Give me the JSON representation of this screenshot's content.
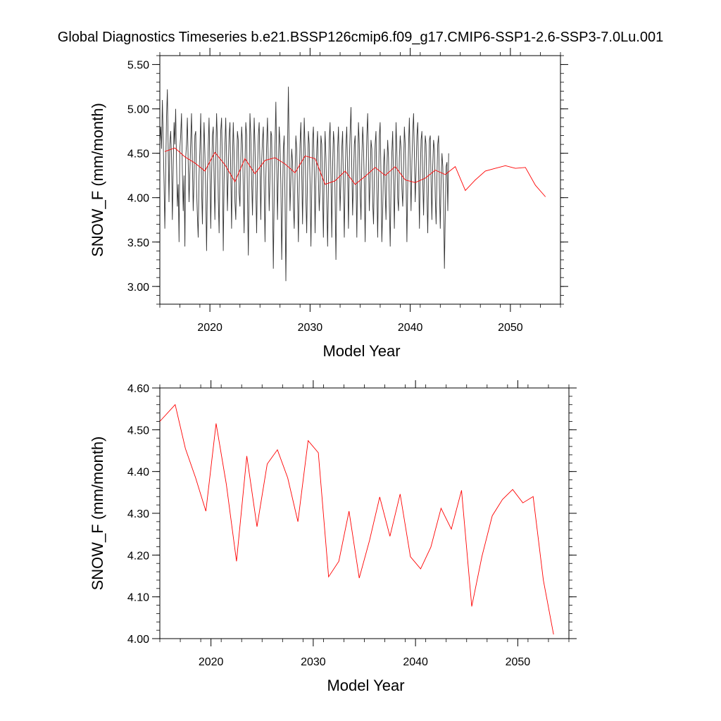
{
  "title": "Global Diagnostics Timeseries b.e21.BSSP126cmip6.f09_g17.CMIP6-SSP1-2.6-SSP3-7.0Lu.001",
  "colors": {
    "monthly_line": "#333333",
    "annual_line": "#ff0000",
    "axis": "#000000",
    "background": "#ffffff"
  },
  "chart_data": [
    {
      "type": "line",
      "xlabel": "Model Year",
      "ylabel": "SNOW_F (mm/month)",
      "xlim": [
        2015,
        2055
      ],
      "ylim": [
        2.8,
        5.6
      ],
      "xticks": [
        2020,
        2030,
        2040,
        2050
      ],
      "xtick_labels": [
        "2020",
        "2030",
        "2040",
        "2050"
      ],
      "yticks": [
        3.0,
        3.5,
        4.0,
        4.5,
        5.0,
        5.5
      ],
      "ytick_labels": [
        "3.00",
        "3.50",
        "4.00",
        "4.50",
        "5.00",
        "5.50"
      ],
      "grid": false,
      "series": [
        {
          "x_start": 2015.0,
          "x_step": 0.0833333,
          "values": [
            4.62,
            4.8,
            4.55,
            5.1,
            4.7,
            4.2,
            3.65,
            4.3,
            4.9,
            5.22,
            4.55,
            3.95,
            4.6,
            4.75,
            4.45,
            3.75,
            4.35,
            4.85,
            4.6,
            5.0,
            4.4,
            3.9,
            4.15,
            3.5,
            4.55,
            4.7,
            4.95,
            4.3,
            3.85,
            4.25,
            3.45,
            4.45,
            4.6,
            4.9,
            4.4,
            3.95,
            4.3,
            4.65,
            4.95,
            4.4,
            3.85,
            4.2,
            4.7,
            4.75,
            4.1,
            3.8,
            3.55,
            4.25,
            4.55,
            4.95,
            4.1,
            3.7,
            4.4,
            4.85,
            4.5,
            4.05,
            3.4,
            4.15,
            4.6,
            4.9,
            4.35,
            3.65,
            4.25,
            4.7,
            4.8,
            4.2,
            3.75,
            4.45,
            4.95,
            4.65,
            4.0,
            3.6,
            4.3,
            4.75,
            4.9,
            4.35,
            3.4,
            4.2,
            4.6,
            4.9,
            4.45,
            3.85,
            4.3,
            4.7,
            4.85,
            4.25,
            3.65,
            4.4,
            4.85,
            4.5,
            3.95,
            3.75,
            4.35,
            4.75,
            4.65,
            4.05,
            3.9,
            4.45,
            4.8,
            4.6,
            4.1,
            3.6,
            4.35,
            4.85,
            4.7,
            4.0,
            3.35,
            4.15,
            4.95,
            4.7,
            4.2,
            3.8,
            4.4,
            4.9,
            4.6,
            4.1,
            3.6,
            4.3,
            4.7,
            4.85,
            4.35,
            3.75,
            4.4,
            4.65,
            4.8,
            4.1,
            3.5,
            4.2,
            4.6,
            4.9,
            4.4,
            3.85,
            4.25,
            4.75,
            4.7,
            4.05,
            3.2,
            4.0,
            4.6,
            5.08,
            4.4,
            3.75,
            4.3,
            4.8,
            4.6,
            4.15,
            3.3,
            3.95,
            4.55,
            4.7,
            4.0,
            3.06,
            3.95,
            4.6,
            5.25,
            4.5,
            3.85,
            4.2,
            4.55,
            4.4,
            3.9,
            3.65,
            4.25,
            4.7,
            4.55,
            4.05,
            3.5,
            4.15,
            4.6,
            4.85,
            4.3,
            3.7,
            4.35,
            4.9,
            4.55,
            4.0,
            3.6,
            4.25,
            4.75,
            4.6,
            4.15,
            3.45,
            4.05,
            4.65,
            4.8,
            4.3,
            3.6,
            4.2,
            4.55,
            4.75,
            4.2,
            3.85,
            4.1,
            4.7,
            4.6,
            4.05,
            3.55,
            4.3,
            4.75,
            4.45,
            3.95,
            3.45,
            4.15,
            4.65,
            4.85,
            4.25,
            3.55,
            4.35,
            4.75,
            4.6,
            4.0,
            3.3,
            4.1,
            4.55,
            4.8,
            4.3,
            3.85,
            4.2,
            4.55,
            4.75,
            4.1,
            3.55,
            4.25,
            4.6,
            4.8,
            4.3,
            3.65,
            4.4,
            4.75,
            5.02,
            4.35,
            3.8,
            4.2,
            4.6,
            4.7,
            4.2,
            3.55,
            4.3,
            4.85,
            4.6,
            4.05,
            3.75,
            4.45,
            4.8,
            4.6,
            4.15,
            3.5,
            4.25,
            4.7,
            4.95,
            4.4,
            3.85,
            4.2,
            4.65,
            4.55,
            3.95,
            3.7,
            4.25,
            4.6,
            4.75,
            4.1,
            3.55,
            4.2,
            4.7,
            4.85,
            4.25,
            3.5,
            3.85,
            4.35,
            4.55,
            4.05,
            3.75,
            4.3,
            4.65,
            4.45,
            3.9,
            3.45,
            4.15,
            4.5,
            4.75,
            4.2,
            3.65,
            4.3,
            4.85,
            4.5,
            4.0,
            3.85,
            4.45,
            4.7,
            4.55,
            4.1,
            3.9,
            4.3,
            4.8,
            4.6,
            4.2,
            3.5,
            4.15,
            4.6,
            4.9,
            4.35,
            3.85,
            4.4,
            4.75,
            4.95,
            4.45,
            3.95,
            4.3,
            4.7,
            4.85,
            4.3,
            3.65,
            4.25,
            4.65,
            4.75,
            4.2,
            3.8,
            4.35,
            4.7,
            4.6,
            4.05,
            3.6,
            4.2,
            4.65,
            4.7,
            4.15,
            3.75,
            4.35,
            4.65,
            4.55,
            4.0,
            3.7,
            4.25,
            4.6,
            4.7,
            4.1,
            3.65,
            4.2,
            4.5,
            4.35,
            3.95,
            3.2,
            3.8,
            4.35,
            4.4,
            3.85,
            4.5
          ]
        },
        {
          "x": [
            2015.5,
            2016.5,
            2017.5,
            2018.5,
            2019.5,
            2020.5,
            2021.5,
            2022.5,
            2023.5,
            2024.5,
            2025.5,
            2026.5,
            2027.5,
            2028.5,
            2029.5,
            2030.5,
            2031.5,
            2032.5,
            2033.5,
            2034.5,
            2035.5,
            2036.5,
            2037.5,
            2038.5,
            2039.5,
            2040.5,
            2041.5,
            2042.5,
            2043.5,
            2044.5,
            2045.5,
            2046.5,
            2047.5,
            2048.5,
            2049.5,
            2050.5,
            2051.5,
            2052.5,
            2053.5
          ],
          "values": [
            4.52,
            4.56,
            4.46,
            4.39,
            4.3,
            4.51,
            4.37,
            4.18,
            4.44,
            4.27,
            4.42,
            4.45,
            4.38,
            4.28,
            4.47,
            4.44,
            4.15,
            4.19,
            4.3,
            4.15,
            4.24,
            4.34,
            4.25,
            4.35,
            4.2,
            4.17,
            4.22,
            4.31,
            4.26,
            4.35,
            4.08,
            4.2,
            4.3,
            4.33,
            4.36,
            4.33,
            4.34,
            4.14,
            4.01
          ]
        }
      ]
    },
    {
      "type": "line",
      "xlabel": "Model Year",
      "ylabel": "SNOW_F (mm/month)",
      "xlim": [
        2015,
        2055
      ],
      "ylim": [
        4.0,
        4.6
      ],
      "xticks": [
        2020,
        2030,
        2040,
        2050
      ],
      "xtick_labels": [
        "2020",
        "2030",
        "2040",
        "2050"
      ],
      "yticks": [
        4.0,
        4.1,
        4.2,
        4.3,
        4.4,
        4.5,
        4.6
      ],
      "ytick_labels": [
        "4.00",
        "4.10",
        "4.20",
        "4.30",
        "4.40",
        "4.50",
        "4.60"
      ],
      "grid": false,
      "series": [
        {
          "x": [
            2015.0,
            2016.5,
            2017.5,
            2018.5,
            2019.5,
            2020.5,
            2021.5,
            2022.5,
            2023.5,
            2024.5,
            2025.5,
            2026.5,
            2027.5,
            2028.5,
            2029.5,
            2030.5,
            2031.5,
            2032.5,
            2033.5,
            2034.5,
            2035.5,
            2036.5,
            2037.5,
            2038.5,
            2039.5,
            2040.5,
            2041.5,
            2042.5,
            2043.5,
            2044.5,
            2045.5,
            2046.5,
            2047.5,
            2048.5,
            2049.5,
            2050.5,
            2051.5,
            2052.5,
            2053.5
          ],
          "values": [
            4.52,
            4.56,
            4.455,
            4.385,
            4.305,
            4.515,
            4.37,
            4.185,
            4.437,
            4.268,
            4.418,
            4.452,
            4.385,
            4.28,
            4.474,
            4.445,
            4.148,
            4.185,
            4.305,
            4.145,
            4.235,
            4.339,
            4.245,
            4.346,
            4.196,
            4.167,
            4.219,
            4.312,
            4.262,
            4.355,
            4.077,
            4.197,
            4.294,
            4.333,
            4.357,
            4.325,
            4.34,
            4.14,
            4.01
          ]
        }
      ]
    }
  ]
}
